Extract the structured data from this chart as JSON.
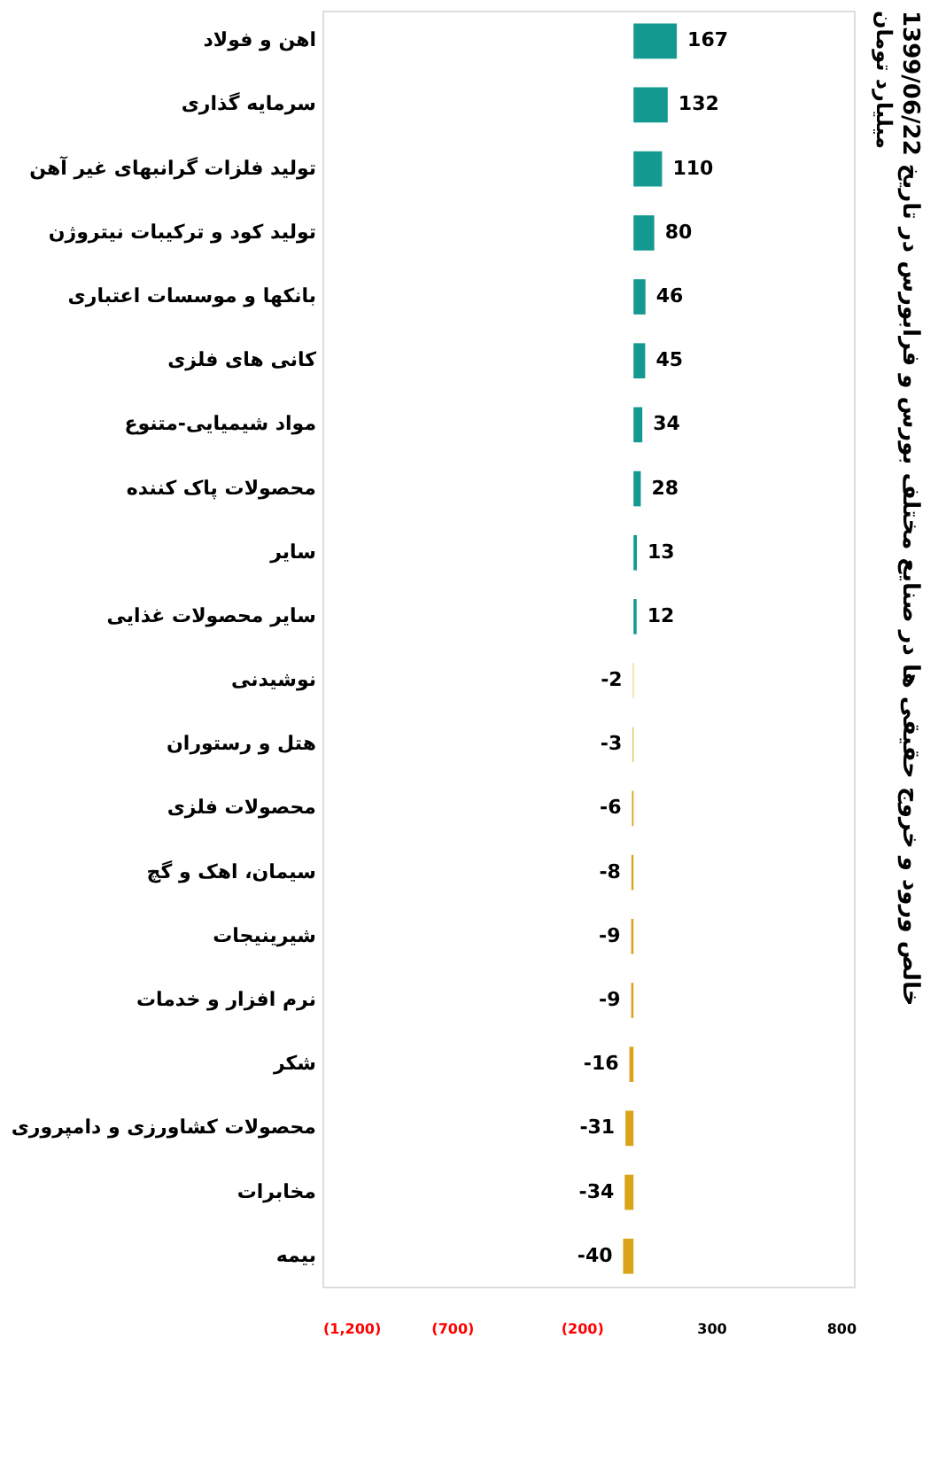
{
  "chart_data": {
    "type": "bar",
    "orientation": "horizontal",
    "title": "خالص ورود و خروج حقیقی ها در صنایع مختلف بورس و فرابورس در تاریخ 1399/06/22",
    "subtitle": "میلیارد تومان",
    "categories": [
      "اهن و فولاد",
      "سرمایه گذاری",
      "تولید فلزات گرانبهای غیر آهن",
      "تولید کود و ترکیبات نیتروژن",
      "بانکها و موسسات اعتباری",
      "کانی های فلزی",
      "مواد شیمیایی-متنوع",
      "محصولات پاک کننده",
      "سایر",
      "سایر محصولات غذایی",
      "نوشیدنی",
      "هتل و رستوران",
      "محصولات فلزی",
      "سیمان، اهک و گچ",
      "شیرینیجات",
      "نرم افزار و خدمات",
      "شکر",
      "محصولات کشاورزی و دامپروری",
      "مخابرات",
      "بیمه"
    ],
    "values": [
      167,
      132,
      110,
      80,
      46,
      45,
      34,
      28,
      13,
      12,
      -2,
      -3,
      -6,
      -8,
      -9,
      -9,
      -16,
      -31,
      -34,
      -40
    ],
    "colors": [
      "#13998f",
      "#13998f",
      "#13998f",
      "#13998f",
      "#13998f",
      "#13998f",
      "#13998f",
      "#13998f",
      "#13998f",
      "#13998f",
      "#d9a31a",
      "#d9a31a",
      "#d9a31a",
      "#d9a31a",
      "#d9a31a",
      "#d9a31a",
      "#d9a31a",
      "#d9a31a",
      "#d9a31a",
      "#d9a31a"
    ],
    "xlim": [
      -1200,
      850
    ],
    "xticks": [
      {
        "value": -1200,
        "label": "(1,200)"
      },
      {
        "value": -700,
        "label": "(700)"
      },
      {
        "value": -200,
        "label": "(200)"
      },
      300,
      800
    ],
    "data_labels": true,
    "grid": false
  }
}
